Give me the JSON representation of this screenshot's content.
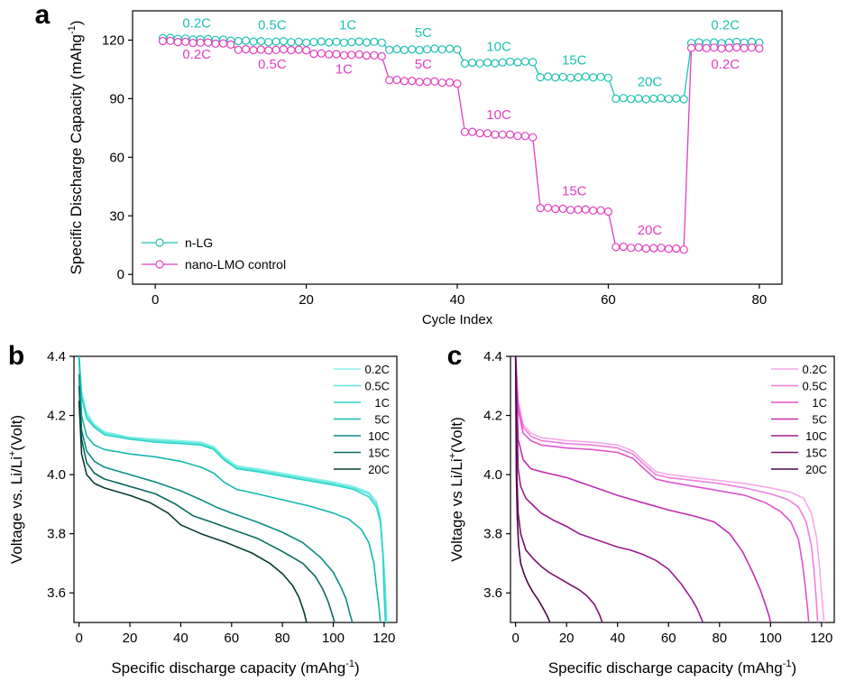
{
  "chart_data": [
    {
      "id": "a",
      "panel_label": "a",
      "type": "scatter",
      "title": "",
      "xlabel": "Cycle Index",
      "ylabel": "Specific Discharge Capacity (mAhg",
      "ylabel_sup": "-1",
      "ylabel_end": ")",
      "xlim": [
        -3,
        83
      ],
      "ylim": [
        -5,
        135
      ],
      "xticks": [
        0,
        20,
        40,
        60,
        80
      ],
      "yticks": [
        0,
        30,
        60,
        90,
        120
      ],
      "legend": {
        "position": "bottom-left"
      },
      "series": [
        {
          "name": "n-LG",
          "color": "#1fc1b3",
          "segments": [
            {
              "x0": 1,
              "x1": 10,
              "y0": 121.0,
              "y1": 120.0
            },
            {
              "x0": 11,
              "x1": 20,
              "y0": 119.5,
              "y1": 119.0
            },
            {
              "x0": 21,
              "x1": 30,
              "y0": 119.0,
              "y1": 119.0
            },
            {
              "x0": 31,
              "x1": 40,
              "y0": 115.0,
              "y1": 115.5
            },
            {
              "x0": 41,
              "x1": 50,
              "y0": 108.0,
              "y1": 109.0
            },
            {
              "x0": 51,
              "x1": 60,
              "y0": 101.0,
              "y1": 101.0
            },
            {
              "x0": 61,
              "x1": 70,
              "y0": 90.0,
              "y1": 90.0
            },
            {
              "x0": 71,
              "x1": 80,
              "y0": 118.5,
              "y1": 119.0
            }
          ]
        },
        {
          "name": "nano-LMO control",
          "color": "#e040c0",
          "segments": [
            {
              "x0": 1,
              "x1": 10,
              "y0": 119.5,
              "y1": 118.0
            },
            {
              "x0": 11,
              "x1": 20,
              "y0": 115.0,
              "y1": 115.0
            },
            {
              "x0": 21,
              "x1": 30,
              "y0": 113.0,
              "y1": 112.0
            },
            {
              "x0": 31,
              "x1": 40,
              "y0": 99.5,
              "y1": 98.0
            },
            {
              "x0": 41,
              "x1": 50,
              "y0": 73.0,
              "y1": 70.5
            },
            {
              "x0": 51,
              "x1": 60,
              "y0": 34.0,
              "y1": 32.5
            },
            {
              "x0": 61,
              "x1": 70,
              "y0": 14.0,
              "y1": 13.0
            },
            {
              "x0": 71,
              "x1": 80,
              "y0": 116.0,
              "y1": 116.0
            }
          ]
        }
      ],
      "rate_labels_nlg": [
        {
          "text": "0.2C",
          "x": 5.5,
          "y": 126.5
        },
        {
          "text": "0.5C",
          "x": 15.5,
          "y": 125.5
        },
        {
          "text": "1C",
          "x": 25.5,
          "y": 125.5
        },
        {
          "text": "5C",
          "x": 35.5,
          "y": 121.5
        },
        {
          "text": "10C",
          "x": 45.5,
          "y": 114.5
        },
        {
          "text": "15C",
          "x": 55.5,
          "y": 107.5
        },
        {
          "text": "20C",
          "x": 65.5,
          "y": 96.5
        },
        {
          "text": "0.2C",
          "x": 75.5,
          "y": 125.5
        }
      ],
      "rate_labels_lmo": [
        {
          "text": "0.2C",
          "x": 5.5,
          "y": 110.5
        },
        {
          "text": "0.5C",
          "x": 15.5,
          "y": 105.5
        },
        {
          "text": "1C",
          "x": 25.0,
          "y": 103.0
        },
        {
          "text": "5C",
          "x": 35.5,
          "y": 105.5
        },
        {
          "text": "10C",
          "x": 45.5,
          "y": 79.5
        },
        {
          "text": "15C",
          "x": 55.5,
          "y": 40.5
        },
        {
          "text": "20C",
          "x": 65.5,
          "y": 20.5
        },
        {
          "text": "0.2C",
          "x": 75.5,
          "y": 105.5
        }
      ]
    },
    {
      "id": "b",
      "panel_label": "b",
      "type": "line",
      "title": "",
      "xlabel": "Specific discharge capacity (mAhg",
      "xlabel_sup": "-1",
      "xlabel_end": ")",
      "ylabel": "Voltage vs. Li/Li",
      "ylabel_sup": "+",
      "ylabel_end": "(Volt)",
      "xlim": [
        -2,
        125
      ],
      "ylim": [
        3.5,
        4.4
      ],
      "xticks": [
        0,
        20,
        40,
        60,
        80,
        100,
        120
      ],
      "yticks": [
        3.6,
        3.8,
        4.0,
        4.2,
        4.4
      ],
      "yticklabels": [
        "3.6",
        "3.8",
        "4.0",
        "4.2",
        "4.4"
      ],
      "legend": {
        "position": "top-right"
      },
      "series": [
        {
          "name": "0.2C",
          "color": "#8ef0ea",
          "x": [
            0,
            1,
            3,
            6,
            10,
            20,
            30,
            40,
            48,
            53,
            57,
            62,
            70,
            80,
            90,
            100,
            108,
            114,
            117,
            118.5,
            119.5,
            120.5,
            121
          ],
          "y": [
            4.4,
            4.28,
            4.21,
            4.17,
            4.145,
            4.125,
            4.12,
            4.115,
            4.11,
            4.095,
            4.06,
            4.03,
            4.02,
            4.005,
            3.99,
            3.975,
            3.96,
            3.94,
            3.91,
            3.86,
            3.75,
            3.62,
            3.5
          ]
        },
        {
          "name": "0.5C",
          "color": "#5ee6dc",
          "x": [
            0,
            1,
            3,
            6,
            10,
            20,
            30,
            40,
            48,
            53,
            57,
            62,
            70,
            80,
            90,
            100,
            108,
            114,
            117,
            118.5,
            119.5,
            120.5,
            121
          ],
          "y": [
            4.4,
            4.27,
            4.2,
            4.165,
            4.14,
            4.125,
            4.115,
            4.11,
            4.105,
            4.09,
            4.055,
            4.025,
            4.015,
            4.0,
            3.985,
            3.97,
            3.955,
            3.935,
            3.9,
            3.85,
            3.74,
            3.61,
            3.5
          ]
        },
        {
          "name": "1C",
          "color": "#2ad4c8",
          "x": [
            0,
            1,
            3,
            6,
            10,
            20,
            30,
            40,
            48,
            53,
            57,
            62,
            70,
            80,
            90,
            100,
            108,
            114,
            117,
            118.5,
            119.5,
            120,
            120.5
          ],
          "y": [
            4.4,
            4.26,
            4.19,
            4.16,
            4.135,
            4.12,
            4.11,
            4.105,
            4.1,
            4.085,
            4.05,
            4.02,
            4.01,
            3.995,
            3.98,
            3.965,
            3.95,
            3.925,
            3.89,
            3.84,
            3.73,
            3.6,
            3.5
          ]
        },
        {
          "name": "5C",
          "color": "#12b8ae",
          "x": [
            0,
            1,
            3,
            6,
            10,
            20,
            30,
            40,
            48,
            53,
            57,
            62,
            70,
            80,
            90,
            100,
            106,
            111,
            114,
            116,
            117,
            118,
            118.5
          ],
          "y": [
            4.4,
            4.2,
            4.13,
            4.1,
            4.085,
            4.07,
            4.06,
            4.045,
            4.025,
            4.005,
            3.975,
            3.95,
            3.935,
            3.915,
            3.895,
            3.87,
            3.85,
            3.815,
            3.77,
            3.7,
            3.62,
            3.55,
            3.5
          ]
        },
        {
          "name": "10C",
          "color": "#0a8c84",
          "x": [
            0,
            1,
            3,
            6,
            10,
            20,
            30,
            40,
            48,
            54,
            60,
            70,
            80,
            88,
            95,
            100,
            103,
            105,
            106.5,
            107.5
          ],
          "y": [
            4.34,
            4.15,
            4.08,
            4.045,
            4.025,
            4.0,
            3.975,
            3.945,
            3.915,
            3.89,
            3.87,
            3.84,
            3.805,
            3.77,
            3.72,
            3.67,
            3.62,
            3.58,
            3.53,
            3.5
          ]
        },
        {
          "name": "15C",
          "color": "#0b6a60",
          "x": [
            0,
            1,
            3,
            6,
            10,
            20,
            30,
            38,
            45,
            52,
            60,
            70,
            80,
            88,
            93,
            96,
            98,
            99.5,
            100.5
          ],
          "y": [
            4.3,
            4.12,
            4.04,
            4.005,
            3.985,
            3.96,
            3.935,
            3.9,
            3.86,
            3.84,
            3.815,
            3.785,
            3.74,
            3.7,
            3.655,
            3.61,
            3.57,
            3.53,
            3.5
          ]
        },
        {
          "name": "20C",
          "color": "#063c34",
          "x": [
            0,
            1,
            3,
            6,
            10,
            20,
            28,
            35,
            40,
            48,
            58,
            68,
            75,
            80,
            84,
            86.5,
            88.5,
            89.5
          ],
          "y": [
            4.25,
            4.07,
            4.0,
            3.97,
            3.955,
            3.93,
            3.905,
            3.87,
            3.83,
            3.8,
            3.77,
            3.735,
            3.7,
            3.665,
            3.625,
            3.585,
            3.535,
            3.5
          ]
        }
      ]
    },
    {
      "id": "c",
      "panel_label": "c",
      "type": "line",
      "title": "",
      "xlabel": "Specific discharge capacity (mAhg",
      "xlabel_sup": "-1",
      "xlabel_end": ")",
      "ylabel": "Voltage vs Li/Li",
      "ylabel_sup": "+",
      "ylabel_end": "(Volt)",
      "xlim": [
        -2,
        125
      ],
      "ylim": [
        3.5,
        4.4
      ],
      "xticks": [
        0,
        20,
        40,
        60,
        80,
        100,
        120
      ],
      "yticks": [
        3.6,
        3.8,
        4.0,
        4.2,
        4.4
      ],
      "yticklabels": [
        "3.6",
        "3.8",
        "4.0",
        "4.2",
        "4.4"
      ],
      "legend": {
        "position": "top-right"
      },
      "series": [
        {
          "name": "0.2C",
          "color": "#f6a8ec",
          "x": [
            0,
            1,
            3,
            6,
            10,
            20,
            30,
            40,
            46,
            51,
            55,
            60,
            70,
            80,
            90,
            100,
            108,
            113,
            116,
            118,
            119,
            120,
            121
          ],
          "y": [
            4.4,
            4.25,
            4.17,
            4.14,
            4.125,
            4.115,
            4.11,
            4.1,
            4.08,
            4.04,
            4.01,
            4.0,
            3.99,
            3.98,
            3.97,
            3.955,
            3.94,
            3.92,
            3.87,
            3.79,
            3.71,
            3.6,
            3.5
          ]
        },
        {
          "name": "0.5C",
          "color": "#ee7ede",
          "x": [
            0,
            1,
            3,
            6,
            10,
            20,
            30,
            40,
            46,
            51,
            55,
            60,
            70,
            80,
            90,
            100,
            107,
            111,
            114,
            116,
            117,
            118,
            118.5
          ],
          "y": [
            4.4,
            4.24,
            4.16,
            4.13,
            4.115,
            4.105,
            4.1,
            4.09,
            4.07,
            4.03,
            4.0,
            3.99,
            3.98,
            3.97,
            3.955,
            3.935,
            3.915,
            3.89,
            3.84,
            3.76,
            3.68,
            3.57,
            3.5
          ]
        },
        {
          "name": "1C",
          "color": "#e052cc",
          "x": [
            0,
            1,
            3,
            6,
            10,
            20,
            30,
            40,
            46,
            51,
            55,
            60,
            70,
            80,
            90,
            98,
            104,
            108,
            111,
            112.5,
            113.5,
            114.5,
            115
          ],
          "y": [
            4.4,
            4.22,
            4.14,
            4.115,
            4.1,
            4.09,
            4.085,
            4.075,
            4.055,
            4.015,
            3.985,
            3.975,
            3.96,
            3.945,
            3.93,
            3.905,
            3.875,
            3.84,
            3.78,
            3.7,
            3.63,
            3.55,
            3.5
          ]
        },
        {
          "name": "5C",
          "color": "#c22cb2",
          "x": [
            0,
            1,
            3,
            6,
            10,
            20,
            30,
            40,
            50,
            60,
            70,
            78,
            84,
            89,
            93,
            96,
            98,
            99.5,
            100
          ],
          "y": [
            4.4,
            4.12,
            4.05,
            4.02,
            4.01,
            3.99,
            3.96,
            3.93,
            3.905,
            3.88,
            3.86,
            3.84,
            3.8,
            3.74,
            3.67,
            3.61,
            3.56,
            3.52,
            3.5
          ]
        },
        {
          "name": "10C",
          "color": "#9c1c90",
          "x": [
            0,
            1,
            2,
            4,
            7,
            10,
            15,
            20,
            25,
            30,
            35,
            40,
            45,
            50,
            55,
            60,
            65,
            69,
            71,
            72.5,
            73.5
          ],
          "y": [
            4.4,
            4.02,
            3.96,
            3.92,
            3.895,
            3.87,
            3.845,
            3.825,
            3.8,
            3.785,
            3.77,
            3.755,
            3.745,
            3.73,
            3.71,
            3.68,
            3.63,
            3.58,
            3.55,
            3.52,
            3.5
          ]
        },
        {
          "name": "15C",
          "color": "#78106e",
          "x": [
            0,
            0.5,
            1,
            2,
            4,
            7,
            10,
            13,
            17,
            21,
            25,
            28,
            31,
            33,
            34
          ],
          "y": [
            4.4,
            4.0,
            3.87,
            3.8,
            3.745,
            3.715,
            3.69,
            3.67,
            3.65,
            3.63,
            3.61,
            3.59,
            3.56,
            3.525,
            3.5
          ]
        },
        {
          "name": "20C",
          "color": "#4c0646",
          "x": [
            0,
            0.3,
            0.7,
            1.2,
            2,
            3.5,
            5,
            7,
            9,
            11,
            12.5,
            13.5
          ],
          "y": [
            4.4,
            4.0,
            3.85,
            3.76,
            3.7,
            3.66,
            3.63,
            3.6,
            3.575,
            3.545,
            3.52,
            3.5
          ]
        }
      ]
    }
  ]
}
